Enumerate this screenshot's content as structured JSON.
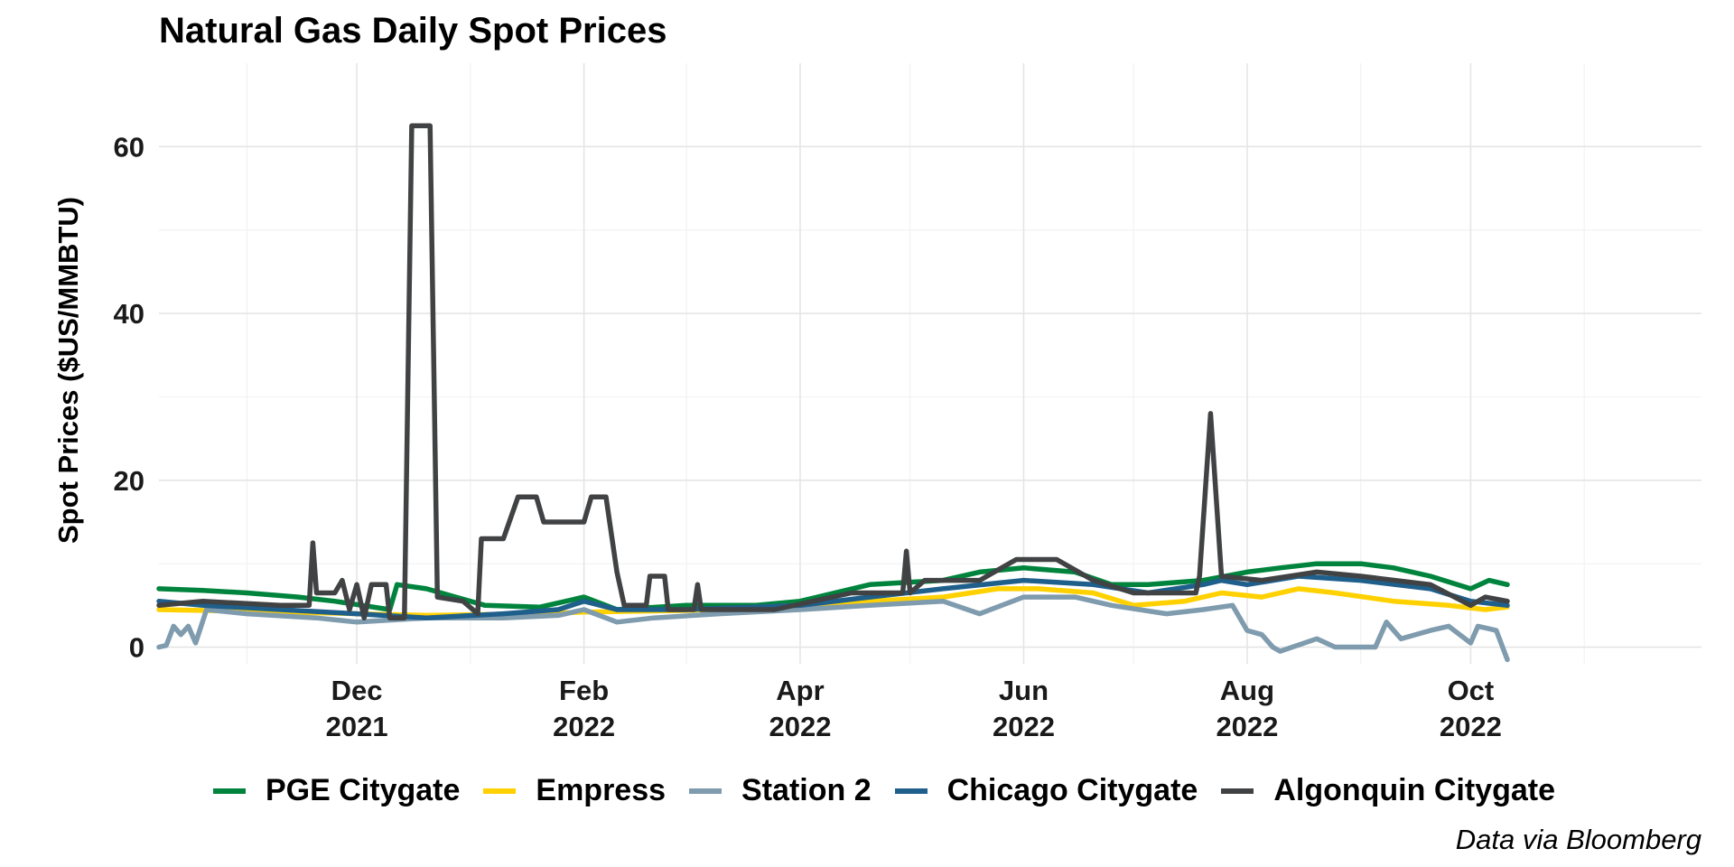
{
  "chart_data": {
    "type": "line",
    "title": "Natural Gas Daily Spot Prices",
    "ylabel": "Spot Prices ($US/MMBTU)",
    "xlabel": "",
    "caption": "Data via Bloomberg",
    "ylim": [
      -2,
      70
    ],
    "yticks": [
      0,
      20,
      40,
      60
    ],
    "xlim": [
      "2021-10-08",
      "2022-12-03"
    ],
    "xticks": [
      {
        "date": "2021-12-01",
        "label": [
          "Dec",
          "2021"
        ]
      },
      {
        "date": "2022-02-01",
        "label": [
          "Feb",
          "2022"
        ]
      },
      {
        "date": "2022-04-01",
        "label": [
          "Apr",
          "2022"
        ]
      },
      {
        "date": "2022-06-01",
        "label": [
          "Jun",
          "2022"
        ]
      },
      {
        "date": "2022-08-01",
        "label": [
          "Aug",
          "2022"
        ]
      },
      {
        "date": "2022-10-01",
        "label": [
          "Oct",
          "2022"
        ]
      }
    ],
    "grid": true,
    "legend_position": "bottom",
    "series": [
      {
        "name": "PGE Citygate",
        "color": "#00843D",
        "points": [
          [
            "2021-10-08",
            7.0
          ],
          [
            "2021-10-20",
            6.8
          ],
          [
            "2021-11-01",
            6.5
          ],
          [
            "2021-11-15",
            6.0
          ],
          [
            "2021-11-25",
            5.5
          ],
          [
            "2021-12-10",
            4.5
          ],
          [
            "2021-12-12",
            7.5
          ],
          [
            "2021-12-20",
            7.0
          ],
          [
            "2021-12-28",
            6.0
          ],
          [
            "2022-01-05",
            5.0
          ],
          [
            "2022-01-20",
            4.8
          ],
          [
            "2022-02-01",
            6.0
          ],
          [
            "2022-02-10",
            4.5
          ],
          [
            "2022-03-01",
            5.0
          ],
          [
            "2022-03-20",
            5.0
          ],
          [
            "2022-04-01",
            5.5
          ],
          [
            "2022-04-20",
            7.5
          ],
          [
            "2022-05-10",
            8.0
          ],
          [
            "2022-05-20",
            9.0
          ],
          [
            "2022-06-01",
            9.5
          ],
          [
            "2022-06-15",
            9.0
          ],
          [
            "2022-06-25",
            7.5
          ],
          [
            "2022-07-05",
            7.5
          ],
          [
            "2022-07-20",
            8.0
          ],
          [
            "2022-08-01",
            9.0
          ],
          [
            "2022-08-10",
            9.5
          ],
          [
            "2022-08-20",
            10.0
          ],
          [
            "2022-09-01",
            10.0
          ],
          [
            "2022-09-10",
            9.5
          ],
          [
            "2022-09-20",
            8.5
          ],
          [
            "2022-10-01",
            7.0
          ],
          [
            "2022-10-06",
            8.0
          ],
          [
            "2022-10-11",
            7.5
          ]
        ]
      },
      {
        "name": "Empress",
        "color": "#FFD100",
        "points": [
          [
            "2021-10-08",
            4.5
          ],
          [
            "2021-11-01",
            4.3
          ],
          [
            "2021-12-01",
            4.0
          ],
          [
            "2021-12-20",
            3.8
          ],
          [
            "2022-01-20",
            4.0
          ],
          [
            "2022-02-01",
            4.2
          ],
          [
            "2022-03-01",
            4.4
          ],
          [
            "2022-04-01",
            5.0
          ],
          [
            "2022-04-20",
            5.5
          ],
          [
            "2022-05-10",
            6.0
          ],
          [
            "2022-05-25",
            7.0
          ],
          [
            "2022-06-05",
            7.0
          ],
          [
            "2022-06-20",
            6.5
          ],
          [
            "2022-07-01",
            5.0
          ],
          [
            "2022-07-15",
            5.5
          ],
          [
            "2022-07-25",
            6.5
          ],
          [
            "2022-08-05",
            6.0
          ],
          [
            "2022-08-15",
            7.0
          ],
          [
            "2022-08-25",
            6.5
          ],
          [
            "2022-09-10",
            5.5
          ],
          [
            "2022-09-25",
            5.0
          ],
          [
            "2022-10-05",
            4.5
          ],
          [
            "2022-10-11",
            4.8
          ]
        ]
      },
      {
        "name": "Station 2",
        "color": "#7F9BAE",
        "points": [
          [
            "2021-10-08",
            0.0
          ],
          [
            "2021-10-10",
            0.2
          ],
          [
            "2021-10-12",
            2.5
          ],
          [
            "2021-10-14",
            1.5
          ],
          [
            "2021-10-16",
            2.5
          ],
          [
            "2021-10-18",
            0.5
          ],
          [
            "2021-10-21",
            4.5
          ],
          [
            "2021-11-01",
            4.0
          ],
          [
            "2021-11-20",
            3.5
          ],
          [
            "2021-12-01",
            3.0
          ],
          [
            "2021-12-20",
            3.5
          ],
          [
            "2022-01-10",
            3.5
          ],
          [
            "2022-01-25",
            3.8
          ],
          [
            "2022-02-01",
            4.5
          ],
          [
            "2022-02-10",
            3.0
          ],
          [
            "2022-02-20",
            3.5
          ],
          [
            "2022-03-10",
            4.0
          ],
          [
            "2022-04-01",
            4.5
          ],
          [
            "2022-04-20",
            5.0
          ],
          [
            "2022-05-10",
            5.5
          ],
          [
            "2022-05-20",
            4.0
          ],
          [
            "2022-06-01",
            6.0
          ],
          [
            "2022-06-15",
            6.0
          ],
          [
            "2022-06-25",
            5.0
          ],
          [
            "2022-07-10",
            4.0
          ],
          [
            "2022-07-20",
            4.5
          ],
          [
            "2022-07-28",
            5.0
          ],
          [
            "2022-08-01",
            2.0
          ],
          [
            "2022-08-05",
            1.5
          ],
          [
            "2022-08-08",
            0.0
          ],
          [
            "2022-08-10",
            -0.5
          ],
          [
            "2022-08-20",
            1.0
          ],
          [
            "2022-08-25",
            0.0
          ],
          [
            "2022-09-05",
            0.0
          ],
          [
            "2022-09-08",
            3.0
          ],
          [
            "2022-09-12",
            1.0
          ],
          [
            "2022-09-20",
            2.0
          ],
          [
            "2022-09-25",
            2.5
          ],
          [
            "2022-10-01",
            0.5
          ],
          [
            "2022-10-03",
            2.5
          ],
          [
            "2022-10-08",
            2.0
          ],
          [
            "2022-10-11",
            -1.5
          ]
        ]
      },
      {
        "name": "Chicago Citygate",
        "color": "#1F5F8B",
        "points": [
          [
            "2021-10-08",
            5.5
          ],
          [
            "2021-10-20",
            5.0
          ],
          [
            "2021-11-10",
            4.5
          ],
          [
            "2021-12-01",
            4.0
          ],
          [
            "2021-12-20",
            3.5
          ],
          [
            "2022-01-10",
            4.0
          ],
          [
            "2022-01-25",
            4.5
          ],
          [
            "2022-02-01",
            5.5
          ],
          [
            "2022-02-10",
            4.5
          ],
          [
            "2022-03-01",
            4.5
          ],
          [
            "2022-04-01",
            5.0
          ],
          [
            "2022-04-20",
            6.0
          ],
          [
            "2022-05-10",
            7.0
          ],
          [
            "2022-06-01",
            8.0
          ],
          [
            "2022-06-20",
            7.5
          ],
          [
            "2022-07-05",
            6.5
          ],
          [
            "2022-07-20",
            7.5
          ],
          [
            "2022-07-25",
            8.0
          ],
          [
            "2022-08-01",
            7.5
          ],
          [
            "2022-08-15",
            8.5
          ],
          [
            "2022-09-01",
            8.0
          ],
          [
            "2022-09-20",
            7.0
          ],
          [
            "2022-10-01",
            5.5
          ],
          [
            "2022-10-11",
            5.0
          ]
        ]
      },
      {
        "name": "Algonquin Citygate",
        "color": "#404244",
        "points": [
          [
            "2021-10-08",
            5.0
          ],
          [
            "2021-10-20",
            5.5
          ],
          [
            "2021-11-10",
            5.0
          ],
          [
            "2021-11-18",
            5.0
          ],
          [
            "2021-11-19",
            12.5
          ],
          [
            "2021-11-20",
            6.5
          ],
          [
            "2021-11-25",
            6.5
          ],
          [
            "2021-11-27",
            8.0
          ],
          [
            "2021-11-29",
            4.5
          ],
          [
            "2021-12-01",
            7.5
          ],
          [
            "2021-12-03",
            3.5
          ],
          [
            "2021-12-05",
            7.5
          ],
          [
            "2021-12-09",
            7.5
          ],
          [
            "2021-12-10",
            3.5
          ],
          [
            "2021-12-14",
            3.5
          ],
          [
            "2021-12-16",
            62.5
          ],
          [
            "2021-12-21",
            62.5
          ],
          [
            "2021-12-23",
            6.0
          ],
          [
            "2021-12-30",
            5.5
          ],
          [
            "2022-01-03",
            4.0
          ],
          [
            "2022-01-04",
            13.0
          ],
          [
            "2022-01-10",
            13.0
          ],
          [
            "2022-01-14",
            18.0
          ],
          [
            "2022-01-19",
            18.0
          ],
          [
            "2022-01-21",
            15.0
          ],
          [
            "2022-01-30",
            15.0
          ],
          [
            "2022-02-01",
            15.0
          ],
          [
            "2022-02-03",
            18.0
          ],
          [
            "2022-02-07",
            18.0
          ],
          [
            "2022-02-10",
            9.0
          ],
          [
            "2022-02-12",
            5.0
          ],
          [
            "2022-02-18",
            5.0
          ],
          [
            "2022-02-19",
            8.5
          ],
          [
            "2022-02-23",
            8.5
          ],
          [
            "2022-02-24",
            4.5
          ],
          [
            "2022-03-03",
            4.5
          ],
          [
            "2022-03-04",
            7.5
          ],
          [
            "2022-03-05",
            4.5
          ],
          [
            "2022-03-25",
            4.5
          ],
          [
            "2022-04-15",
            6.5
          ],
          [
            "2022-04-29",
            6.5
          ],
          [
            "2022-04-30",
            11.5
          ],
          [
            "2022-05-01",
            6.5
          ],
          [
            "2022-05-05",
            8.0
          ],
          [
            "2022-05-20",
            8.0
          ],
          [
            "2022-05-30",
            10.5
          ],
          [
            "2022-06-10",
            10.5
          ],
          [
            "2022-06-20",
            8.0
          ],
          [
            "2022-07-01",
            6.5
          ],
          [
            "2022-07-18",
            6.5
          ],
          [
            "2022-07-19",
            8.5
          ],
          [
            "2022-07-22",
            28.0
          ],
          [
            "2022-07-25",
            8.5
          ],
          [
            "2022-08-05",
            8.0
          ],
          [
            "2022-08-20",
            9.0
          ],
          [
            "2022-09-01",
            8.5
          ],
          [
            "2022-09-20",
            7.5
          ],
          [
            "2022-10-01",
            5.0
          ],
          [
            "2022-10-05",
            6.0
          ],
          [
            "2022-10-11",
            5.5
          ]
        ]
      }
    ]
  }
}
